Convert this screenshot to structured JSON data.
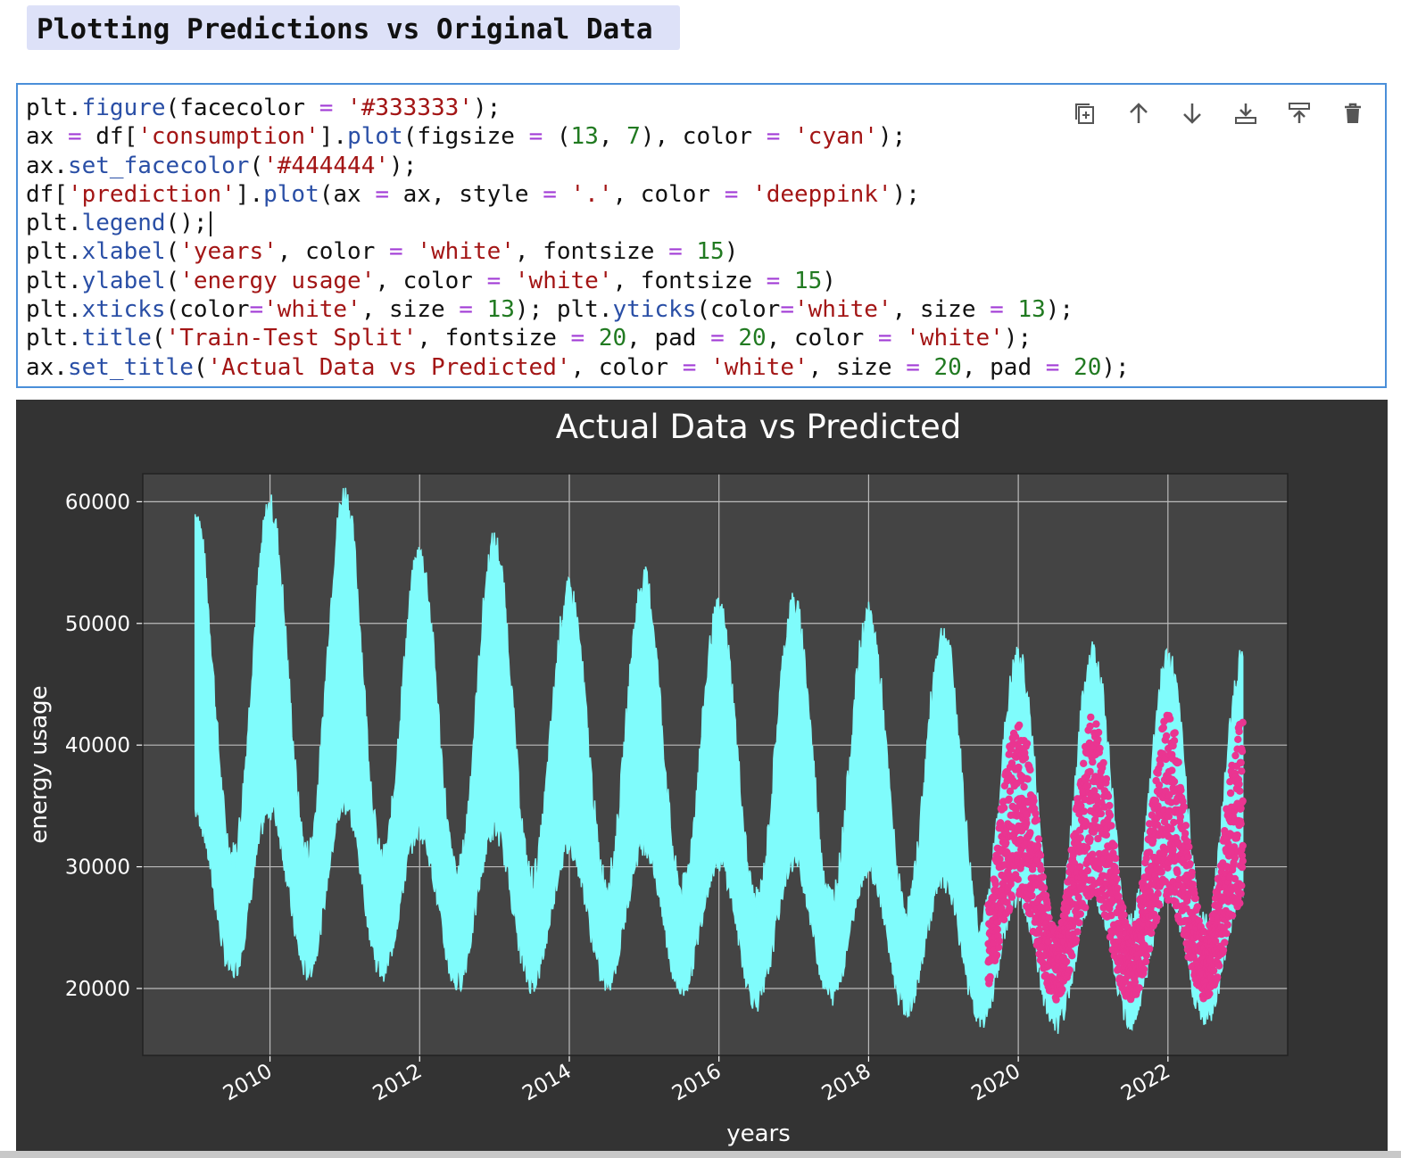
{
  "heading": {
    "text": "Plotting Predictions vs Original Data"
  },
  "cell": {
    "toolbar": [
      {
        "name": "duplicate-icon",
        "label": "Duplicate cell"
      },
      {
        "name": "arrow-up-icon",
        "label": "Move up"
      },
      {
        "name": "arrow-down-icon",
        "label": "Move down"
      },
      {
        "name": "insert-below-icon",
        "label": "Insert below"
      },
      {
        "name": "insert-above-icon",
        "label": "Insert above"
      },
      {
        "name": "trash-icon",
        "label": "Delete cell"
      }
    ],
    "code_lines": [
      [
        [
          "t",
          "plt."
        ],
        [
          "kw",
          "figure"
        ],
        [
          "t",
          "(facecolor "
        ],
        [
          "op",
          "="
        ],
        [
          "t",
          " "
        ],
        [
          "st",
          "'#333333'"
        ],
        [
          "t",
          ");"
        ]
      ],
      [
        [
          "t",
          "ax "
        ],
        [
          "op",
          "="
        ],
        [
          "t",
          " df["
        ],
        [
          "st",
          "'consumption'"
        ],
        [
          "t",
          "]."
        ],
        [
          "kw",
          "plot"
        ],
        [
          "t",
          "(figsize "
        ],
        [
          "op",
          "="
        ],
        [
          "t",
          " ("
        ],
        [
          "nm",
          "13"
        ],
        [
          "t",
          ", "
        ],
        [
          "nm",
          "7"
        ],
        [
          "t",
          "), color "
        ],
        [
          "op",
          "="
        ],
        [
          "t",
          " "
        ],
        [
          "st",
          "'cyan'"
        ],
        [
          "t",
          ");"
        ]
      ],
      [
        [
          "t",
          "ax."
        ],
        [
          "kw",
          "set_facecolor"
        ],
        [
          "t",
          "("
        ],
        [
          "st",
          "'#444444'"
        ],
        [
          "t",
          ");"
        ]
      ],
      [
        [
          "t",
          "df["
        ],
        [
          "st",
          "'prediction'"
        ],
        [
          "t",
          "]."
        ],
        [
          "kw",
          "plot"
        ],
        [
          "t",
          "(ax "
        ],
        [
          "op",
          "="
        ],
        [
          "t",
          " ax, style "
        ],
        [
          "op",
          "="
        ],
        [
          "t",
          " "
        ],
        [
          "st",
          "'.'"
        ],
        [
          "t",
          ", color "
        ],
        [
          "op",
          "="
        ],
        [
          "t",
          " "
        ],
        [
          "st",
          "'deeppink'"
        ],
        [
          "t",
          ");"
        ]
      ],
      [
        [
          "t",
          "plt."
        ],
        [
          "kw",
          "legend"
        ],
        [
          "t",
          "();"
        ]
      ],
      [
        [
          "t",
          "plt."
        ],
        [
          "kw",
          "xlabel"
        ],
        [
          "t",
          "("
        ],
        [
          "st",
          "'years'"
        ],
        [
          "t",
          ", color "
        ],
        [
          "op",
          "="
        ],
        [
          "t",
          " "
        ],
        [
          "st",
          "'white'"
        ],
        [
          "t",
          ", fontsize "
        ],
        [
          "op",
          "="
        ],
        [
          "t",
          " "
        ],
        [
          "nm",
          "15"
        ],
        [
          "t",
          ")"
        ]
      ],
      [
        [
          "t",
          "plt."
        ],
        [
          "kw",
          "ylabel"
        ],
        [
          "t",
          "("
        ],
        [
          "st",
          "'energy usage'"
        ],
        [
          "t",
          ", color "
        ],
        [
          "op",
          "="
        ],
        [
          "t",
          " "
        ],
        [
          "st",
          "'white'"
        ],
        [
          "t",
          ", fontsize "
        ],
        [
          "op",
          "="
        ],
        [
          "t",
          " "
        ],
        [
          "nm",
          "15"
        ],
        [
          "t",
          ")"
        ]
      ],
      [
        [
          "t",
          "plt."
        ],
        [
          "kw",
          "xticks"
        ],
        [
          "t",
          "(color"
        ],
        [
          "op",
          "="
        ],
        [
          "st",
          "'white'"
        ],
        [
          "t",
          ", size "
        ],
        [
          "op",
          "="
        ],
        [
          "t",
          " "
        ],
        [
          "nm",
          "13"
        ],
        [
          "t",
          "); plt."
        ],
        [
          "kw",
          "yticks"
        ],
        [
          "t",
          "(color"
        ],
        [
          "op",
          "="
        ],
        [
          "st",
          "'white'"
        ],
        [
          "t",
          ", size "
        ],
        [
          "op",
          "="
        ],
        [
          "t",
          " "
        ],
        [
          "nm",
          "13"
        ],
        [
          "t",
          ");"
        ]
      ],
      [
        [
          "t",
          "plt."
        ],
        [
          "kw",
          "title"
        ],
        [
          "t",
          "("
        ],
        [
          "st",
          "'Train-Test Split'"
        ],
        [
          "t",
          ", fontsize "
        ],
        [
          "op",
          "="
        ],
        [
          "t",
          " "
        ],
        [
          "nm",
          "20"
        ],
        [
          "t",
          ", pad "
        ],
        [
          "op",
          "="
        ],
        [
          "t",
          " "
        ],
        [
          "nm",
          "20"
        ],
        [
          "t",
          ", color "
        ],
        [
          "op",
          "="
        ],
        [
          "t",
          " "
        ],
        [
          "st",
          "'white'"
        ],
        [
          "t",
          ");"
        ]
      ],
      [
        [
          "t",
          "ax."
        ],
        [
          "kw",
          "set_title"
        ],
        [
          "t",
          "("
        ],
        [
          "st",
          "'Actual Data vs Predicted'"
        ],
        [
          "t",
          ", color "
        ],
        [
          "op",
          "="
        ],
        [
          "t",
          " "
        ],
        [
          "st",
          "'white'"
        ],
        [
          "t",
          ", size "
        ],
        [
          "op",
          "="
        ],
        [
          "t",
          " "
        ],
        [
          "nm",
          "20"
        ],
        [
          "t",
          ", pad "
        ],
        [
          "op",
          "="
        ],
        [
          "t",
          " "
        ],
        [
          "nm",
          "20"
        ],
        [
          "t",
          ");"
        ]
      ]
    ],
    "caret_line": 4
  },
  "chart_data": {
    "type": "line",
    "title": "Actual Data vs Predicted",
    "xlabel": "years",
    "ylabel": "energy usage",
    "xlim": [
      2008.3,
      2023.6
    ],
    "ylim": [
      14500,
      62300
    ],
    "xticks": [
      2010,
      2012,
      2014,
      2016,
      2018,
      2020,
      2022
    ],
    "yticks": [
      20000,
      30000,
      40000,
      50000,
      60000
    ],
    "grid": true,
    "figure_facecolor": "#333333",
    "axes_facecolor": "#444444",
    "series": [
      {
        "column": "consumption",
        "color": "#7ffcfc",
        "style": "line",
        "x_start": 2009.0,
        "x_end": 2023.0,
        "peaks": [
          [
            2009.0,
            59000
          ],
          [
            2010.0,
            59500
          ],
          [
            2011.0,
            60500
          ],
          [
            2012.0,
            55500
          ],
          [
            2013.0,
            56500
          ],
          [
            2014.0,
            52500
          ],
          [
            2015.0,
            53500
          ],
          [
            2016.0,
            51000
          ],
          [
            2017.0,
            51500
          ],
          [
            2018.0,
            50500
          ],
          [
            2019.0,
            49000
          ],
          [
            2020.0,
            47000
          ],
          [
            2021.0,
            47500
          ],
          [
            2022.0,
            47000
          ],
          [
            2023.0,
            47000
          ]
        ],
        "troughs": [
          [
            2009.5,
            21500
          ],
          [
            2010.5,
            21500
          ],
          [
            2011.5,
            21500
          ],
          [
            2012.5,
            20500
          ],
          [
            2013.5,
            20500
          ],
          [
            2014.5,
            20500
          ],
          [
            2015.5,
            20000
          ],
          [
            2016.5,
            19000
          ],
          [
            2017.5,
            19500
          ],
          [
            2018.5,
            18500
          ],
          [
            2019.5,
            17500
          ],
          [
            2020.5,
            17000
          ],
          [
            2021.5,
            17500
          ],
          [
            2022.5,
            17500
          ]
        ]
      },
      {
        "column": "prediction",
        "color": "#ea3591",
        "style": "dot",
        "x_start": 2019.6,
        "x_end": 2023.0,
        "peaks": [
          [
            2020.0,
            42500
          ],
          [
            2021.0,
            42500
          ],
          [
            2022.0,
            42500
          ],
          [
            2023.0,
            42000
          ]
        ],
        "troughs": [
          [
            2019.6,
            19500
          ],
          [
            2020.5,
            19000
          ],
          [
            2021.5,
            19000
          ],
          [
            2022.5,
            19000
          ]
        ]
      }
    ]
  }
}
